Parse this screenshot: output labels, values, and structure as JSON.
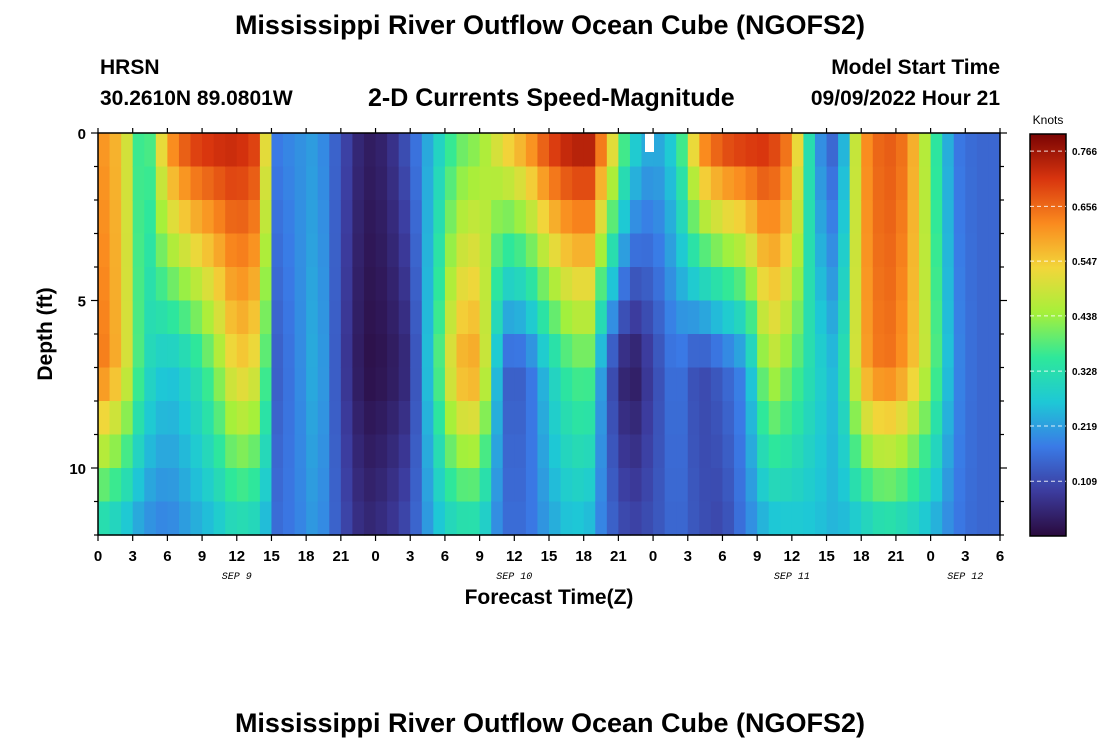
{
  "header": {
    "title": "Mississippi River Outflow Ocean Cube (NGOFS2)",
    "station_name": "HRSN",
    "station_coords": "30.2610N  89.0801W",
    "product_title": "2-D Currents Speed-Magnitude",
    "model_start_label": "Model Start Time",
    "model_start_value": "09/09/2022 Hour 21"
  },
  "footer": {
    "title": "Mississippi River Outflow Ocean Cube (NGOFS2)"
  },
  "chart_data": {
    "type": "heatmap",
    "title": "2-D Currents Speed-Magnitude",
    "xlabel": "Forecast Time(Z)",
    "ylabel": "Depth (ft)",
    "x_range_hours": [
      0,
      78
    ],
    "y_range": [
      0,
      12
    ],
    "y_reversed": true,
    "x_ticks": [
      "0",
      "3",
      "6",
      "9",
      "12",
      "15",
      "18",
      "21",
      "0",
      "3",
      "6",
      "9",
      "12",
      "15",
      "18",
      "21",
      "0",
      "3",
      "6",
      "9",
      "12",
      "15",
      "18",
      "21",
      "0",
      "3",
      "6"
    ],
    "y_ticks": [
      "0",
      "5",
      "10"
    ],
    "date_labels": [
      {
        "label": "SEP 9",
        "hour": 12
      },
      {
        "label": "SEP 10",
        "hour": 36
      },
      {
        "label": "SEP 11",
        "hour": 60
      },
      {
        "label": "SEP 12",
        "hour": 75
      }
    ],
    "colorbar": {
      "unit": "Knots",
      "min": 0,
      "max": 0.8,
      "ticks": [
        "0.766",
        "0.656",
        "0.547",
        "0.438",
        "0.328",
        "0.219",
        "0.109"
      ],
      "tick_values": [
        0.766,
        0.656,
        0.547,
        0.438,
        0.328,
        0.219,
        0.109
      ],
      "colors": [
        "#2a0a3d",
        "#3c3c9e",
        "#3a7ae6",
        "#1ec8d6",
        "#2ee89a",
        "#a6f03a",
        "#f2d63a",
        "#fa8a1e",
        "#d8340e",
        "#7a0403"
      ]
    },
    "field": {
      "times": [
        0,
        2,
        4,
        6,
        8,
        10,
        12,
        14,
        15.5,
        17,
        19,
        21,
        23,
        25,
        27,
        29,
        31,
        33,
        35,
        37,
        39,
        41,
        42.5,
        44,
        46,
        48,
        50,
        52,
        54,
        56,
        58,
        60,
        62,
        64,
        66,
        68,
        70,
        72,
        74,
        76,
        78
      ],
      "surface": [
        0.62,
        0.56,
        0.3,
        0.62,
        0.72,
        0.74,
        0.74,
        0.7,
        0.18,
        0.2,
        0.22,
        0.12,
        0.03,
        0.05,
        0.14,
        0.26,
        0.38,
        0.42,
        0.55,
        0.62,
        0.72,
        0.77,
        0.77,
        0.62,
        0.32,
        0.22,
        0.3,
        0.64,
        0.72,
        0.74,
        0.73,
        0.64,
        0.22,
        0.12,
        0.6,
        0.68,
        0.64,
        0.4,
        0.18,
        0.15,
        0.15
      ],
      "mid": [
        0.66,
        0.56,
        0.32,
        0.26,
        0.3,
        0.4,
        0.55,
        0.5,
        0.14,
        0.18,
        0.25,
        0.1,
        0.01,
        0.02,
        0.06,
        0.32,
        0.58,
        0.6,
        0.14,
        0.14,
        0.28,
        0.38,
        0.38,
        0.14,
        0.01,
        0.1,
        0.18,
        0.1,
        0.14,
        0.2,
        0.48,
        0.4,
        0.3,
        0.24,
        0.58,
        0.66,
        0.6,
        0.44,
        0.2,
        0.15,
        0.15
      ],
      "bottom": [
        0.3,
        0.26,
        0.2,
        0.18,
        0.22,
        0.25,
        0.3,
        0.28,
        0.16,
        0.18,
        0.22,
        0.12,
        0.05,
        0.07,
        0.12,
        0.24,
        0.3,
        0.3,
        0.16,
        0.16,
        0.22,
        0.26,
        0.24,
        0.16,
        0.1,
        0.12,
        0.16,
        0.12,
        0.1,
        0.18,
        0.24,
        0.26,
        0.26,
        0.24,
        0.26,
        0.3,
        0.28,
        0.24,
        0.18,
        0.15,
        0.15
      ]
    }
  }
}
